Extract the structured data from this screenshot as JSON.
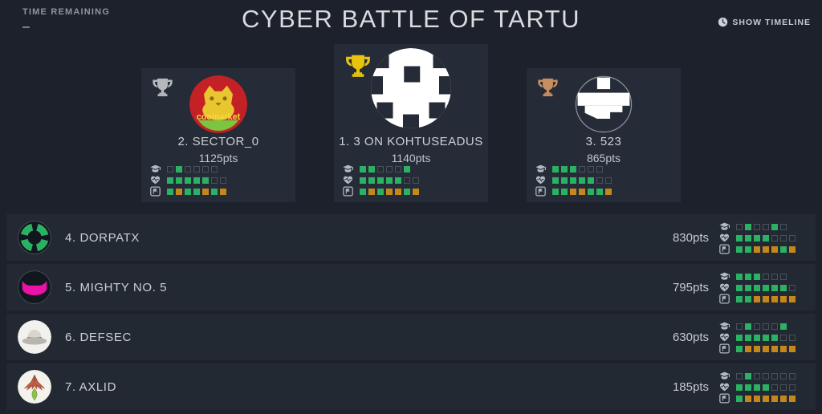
{
  "header": {
    "time_remaining_label": "TIME REMAINING",
    "time_remaining_value": "–",
    "title": "CYBER BATTLE OF TARTU",
    "show_timeline_label": "SHOW TIMELINE"
  },
  "colors": {
    "green": "#2bb163",
    "orange": "#c5871c",
    "gold": "#e8c40e",
    "silver": "#b5b9be",
    "bronze": "#c98e5f"
  },
  "stat_icons": [
    "graduation-cap-icon",
    "heart-icon",
    "flag-icon"
  ],
  "podium": [
    {
      "rank": 2,
      "display": "2. SECTOR_0",
      "points": "1125pts",
      "trophy": "silver",
      "avatar": "sector0",
      "avatar_text": "coomarket",
      "stats": [
        [
          "e",
          "g",
          "e",
          "e",
          "e",
          "e"
        ],
        [
          "g",
          "g",
          "g",
          "g",
          "g",
          "e",
          "e"
        ],
        [
          "g",
          "o",
          "g",
          "g",
          "o",
          "g",
          "o"
        ]
      ]
    },
    {
      "rank": 1,
      "display": "1. 3 ON KOHTUSEADUS",
      "points": "1140pts",
      "trophy": "gold",
      "avatar": "kohtuseadus",
      "stats": [
        [
          "g",
          "g",
          "e",
          "e",
          "e",
          "g"
        ],
        [
          "g",
          "g",
          "g",
          "g",
          "g",
          "e",
          "e"
        ],
        [
          "g",
          "o",
          "g",
          "o",
          "o",
          "g",
          "o"
        ]
      ]
    },
    {
      "rank": 3,
      "display": "3. 523",
      "points": "865pts",
      "trophy": "bronze",
      "avatar": "team523",
      "stats": [
        [
          "g",
          "g",
          "g",
          "e",
          "e",
          "e"
        ],
        [
          "g",
          "g",
          "g",
          "g",
          "g",
          "e",
          "e"
        ],
        [
          "g",
          "g",
          "o",
          "o",
          "g",
          "g",
          "o"
        ]
      ]
    }
  ],
  "teams": [
    {
      "display": "4. DORPATX",
      "points": "830pts",
      "avatar": "dorpatx",
      "stats": [
        [
          "e",
          "g",
          "e",
          "e",
          "g",
          "e"
        ],
        [
          "g",
          "g",
          "g",
          "g",
          "e",
          "e",
          "e"
        ],
        [
          "g",
          "g",
          "o",
          "o",
          "o",
          "g",
          "o"
        ]
      ]
    },
    {
      "display": "5. MIGHTY NO. 5",
      "points": "795pts",
      "avatar": "mighty5",
      "stats": [
        [
          "g",
          "g",
          "g",
          "e",
          "e",
          "e"
        ],
        [
          "g",
          "g",
          "g",
          "g",
          "g",
          "g",
          "e"
        ],
        [
          "g",
          "g",
          "o",
          "o",
          "o",
          "o",
          "o"
        ]
      ]
    },
    {
      "display": "6. DEFSEC",
      "points": "630pts",
      "avatar": "defsec",
      "stats": [
        [
          "e",
          "g",
          "e",
          "e",
          "e",
          "g"
        ],
        [
          "g",
          "g",
          "g",
          "g",
          "g",
          "e",
          "e"
        ],
        [
          "g",
          "o",
          "o",
          "o",
          "o",
          "o",
          "o"
        ]
      ]
    },
    {
      "display": "7. AXLID",
      "points": "185pts",
      "avatar": "axlid",
      "stats": [
        [
          "e",
          "g",
          "e",
          "e",
          "e",
          "e",
          "e"
        ],
        [
          "g",
          "g",
          "g",
          "g",
          "e",
          "e",
          "e"
        ],
        [
          "g",
          "o",
          "o",
          "o",
          "o",
          "o",
          "o"
        ]
      ]
    }
  ]
}
